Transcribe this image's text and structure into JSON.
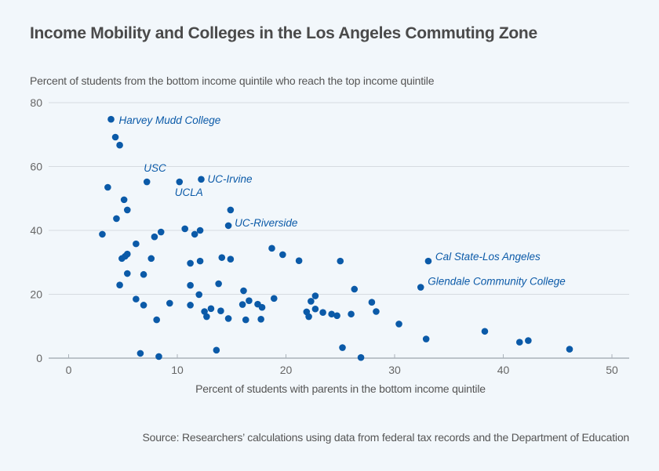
{
  "chart_data": {
    "type": "scatter",
    "title": "Income Mobility and Colleges in the Los Angeles Commuting Zone",
    "ylabel": "Percent of students from the bottom income quintile who reach the top income quintile",
    "xlabel": "Percent of students with parents in the bottom income quintile",
    "source": "Source: Researchers’ calculations using data from federal tax records and the Department of Education",
    "xlim": [
      -2,
      52
    ],
    "ylim": [
      0,
      80
    ],
    "xticks": [
      0,
      10,
      20,
      30,
      40,
      50
    ],
    "yticks": [
      0,
      20,
      40,
      60,
      80
    ],
    "grid": "horizontal",
    "point_color": "#0b5aa8",
    "annotation_color": "#0b5aa8",
    "points": [
      {
        "x": 3.9,
        "y": 74.8,
        "label": "Harvey Mudd College"
      },
      {
        "x": 4.3,
        "y": 69.2
      },
      {
        "x": 4.7,
        "y": 66.7
      },
      {
        "x": 3.6,
        "y": 53.5
      },
      {
        "x": 7.2,
        "y": 55.2,
        "label": "USC"
      },
      {
        "x": 10.2,
        "y": 55.2,
        "label": "UCLA"
      },
      {
        "x": 12.2,
        "y": 56.0,
        "label": "UC-Irvine"
      },
      {
        "x": 5.1,
        "y": 49.6
      },
      {
        "x": 5.4,
        "y": 46.4
      },
      {
        "x": 4.4,
        "y": 43.7
      },
      {
        "x": 14.9,
        "y": 46.4
      },
      {
        "x": 14.7,
        "y": 41.5,
        "label": "UC-Riverside"
      },
      {
        "x": 3.1,
        "y": 38.8
      },
      {
        "x": 8.5,
        "y": 39.5
      },
      {
        "x": 7.9,
        "y": 38.0
      },
      {
        "x": 10.7,
        "y": 40.5
      },
      {
        "x": 11.6,
        "y": 38.8
      },
      {
        "x": 12.1,
        "y": 40.0
      },
      {
        "x": 6.2,
        "y": 35.8
      },
      {
        "x": 5.4,
        "y": 32.6
      },
      {
        "x": 5.2,
        "y": 31.9
      },
      {
        "x": 4.9,
        "y": 31.2
      },
      {
        "x": 7.6,
        "y": 31.2
      },
      {
        "x": 11.2,
        "y": 29.7
      },
      {
        "x": 12.1,
        "y": 30.4
      },
      {
        "x": 14.1,
        "y": 31.5
      },
      {
        "x": 14.9,
        "y": 31.0
      },
      {
        "x": 5.4,
        "y": 26.5
      },
      {
        "x": 6.9,
        "y": 26.2
      },
      {
        "x": 4.7,
        "y": 22.9
      },
      {
        "x": 11.2,
        "y": 22.8
      },
      {
        "x": 13.8,
        "y": 23.3
      },
      {
        "x": 6.2,
        "y": 18.5
      },
      {
        "x": 6.9,
        "y": 16.6
      },
      {
        "x": 9.3,
        "y": 17.2
      },
      {
        "x": 11.2,
        "y": 16.6
      },
      {
        "x": 12.0,
        "y": 19.9
      },
      {
        "x": 12.5,
        "y": 14.6
      },
      {
        "x": 12.7,
        "y": 13.0
      },
      {
        "x": 13.1,
        "y": 15.5
      },
      {
        "x": 14.0,
        "y": 14.8
      },
      {
        "x": 14.7,
        "y": 12.4
      },
      {
        "x": 8.1,
        "y": 12.0
      },
      {
        "x": 16.1,
        "y": 21.1
      },
      {
        "x": 16.0,
        "y": 16.8
      },
      {
        "x": 16.6,
        "y": 18.0
      },
      {
        "x": 16.3,
        "y": 12.0
      },
      {
        "x": 17.4,
        "y": 16.9
      },
      {
        "x": 17.8,
        "y": 15.9
      },
      {
        "x": 17.7,
        "y": 12.2
      },
      {
        "x": 18.9,
        "y": 18.7
      },
      {
        "x": 18.7,
        "y": 34.4
      },
      {
        "x": 19.7,
        "y": 32.4
      },
      {
        "x": 21.2,
        "y": 30.5
      },
      {
        "x": 25.0,
        "y": 30.4
      },
      {
        "x": 21.9,
        "y": 14.5
      },
      {
        "x": 22.1,
        "y": 13.0
      },
      {
        "x": 22.3,
        "y": 17.8
      },
      {
        "x": 22.7,
        "y": 19.5
      },
      {
        "x": 22.7,
        "y": 15.4
      },
      {
        "x": 23.4,
        "y": 14.3
      },
      {
        "x": 24.2,
        "y": 13.8
      },
      {
        "x": 24.7,
        "y": 13.3
      },
      {
        "x": 26.0,
        "y": 13.8
      },
      {
        "x": 26.3,
        "y": 21.6
      },
      {
        "x": 27.9,
        "y": 17.5
      },
      {
        "x": 28.3,
        "y": 14.6
      },
      {
        "x": 30.4,
        "y": 10.7
      },
      {
        "x": 25.2,
        "y": 3.3
      },
      {
        "x": 26.9,
        "y": 0.2
      },
      {
        "x": 32.9,
        "y": 6.0
      },
      {
        "x": 32.4,
        "y": 22.2,
        "label": "Glendale Community College"
      },
      {
        "x": 33.1,
        "y": 30.4,
        "label": "Cal State-Los Angeles"
      },
      {
        "x": 38.3,
        "y": 8.4
      },
      {
        "x": 41.5,
        "y": 5.0
      },
      {
        "x": 42.3,
        "y": 5.5
      },
      {
        "x": 46.1,
        "y": 2.8
      },
      {
        "x": 6.6,
        "y": 1.5
      },
      {
        "x": 8.3,
        "y": 0.5
      },
      {
        "x": 13.6,
        "y": 2.5
      }
    ]
  }
}
